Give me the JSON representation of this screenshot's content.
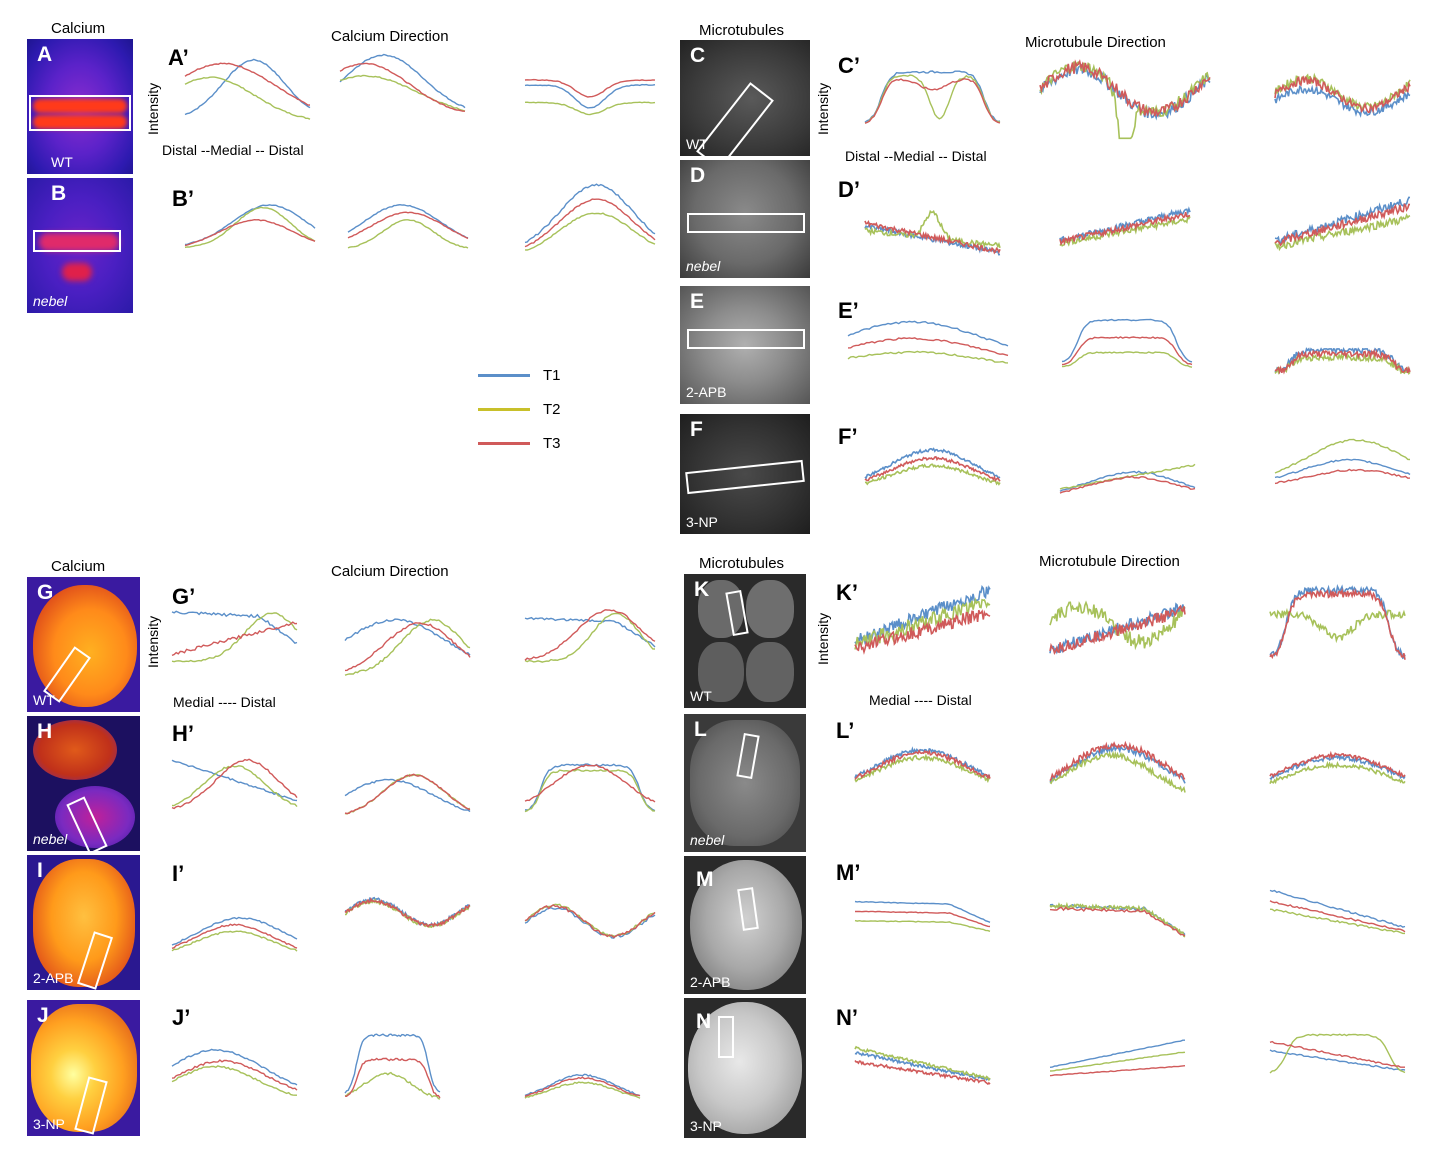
{
  "headers": {
    "calcium_top": "Calcium",
    "calcium_direction_top": "Calcium Direction",
    "microtubules_top": "Microtubules",
    "microtubule_direction_top": "Microtubule Direction",
    "calcium_bottom": "Calcium",
    "calcium_direction_bottom": "Calcium Direction",
    "microtubules_bottom": "Microtubules",
    "microtubule_direction_bottom": "Microtubule Direction"
  },
  "axes": {
    "intensity": "Intensity",
    "distal_medial_distal": "Distal --Medial -- Distal",
    "medial_distal": "Medial ---- Distal"
  },
  "legend": [
    {
      "label": "T1",
      "color": "#5b8fc9"
    },
    {
      "label": "T2",
      "color": "#c8c02a"
    },
    {
      "label": "T3",
      "color": "#d05a5a"
    }
  ],
  "panel_letters": {
    "A": "A",
    "B": "B",
    "C": "C",
    "D": "D",
    "E": "E",
    "F": "F",
    "G": "G",
    "H": "H",
    "I": "I",
    "J": "J",
    "K": "K",
    "L": "L",
    "M": "M",
    "N": "N"
  },
  "plot_letters": {
    "Ap": "A’",
    "Bp": "B’",
    "Cp": "C’",
    "Dp": "D’",
    "Ep": "E’",
    "Fp": "F’",
    "Gp": "G’",
    "Hp": "H’",
    "Ip": "I’",
    "Jp": "J’",
    "Kp": "K’",
    "Lp": "L’",
    "Mp": "M’",
    "Np": "N’"
  },
  "conditions": {
    "wt": "WT",
    "nebel": "nebel",
    "apb": "2-APB",
    "np": "3-NP"
  },
  "series_colors": {
    "blue": "#5b8fc9",
    "green": "#a7c15a",
    "red": "#d05a5a"
  }
}
